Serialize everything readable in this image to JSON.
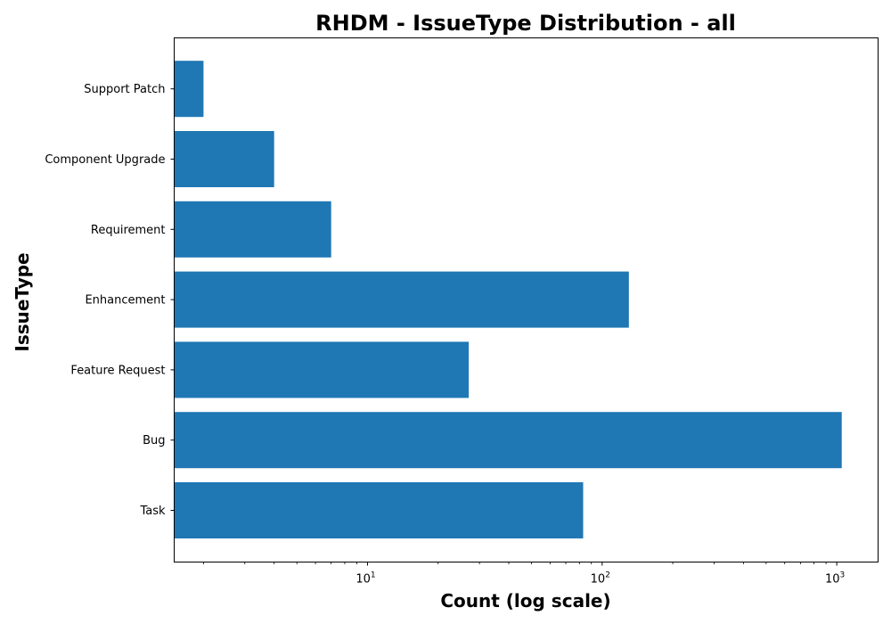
{
  "chart_data": {
    "type": "bar",
    "orientation": "horizontal",
    "title": "RHDM - IssueType Distribution - all",
    "xlabel": "Count (log scale)",
    "ylabel": "IssueType",
    "xscale": "log",
    "xlim": [
      1.5,
      1500
    ],
    "categories": [
      "Task",
      "Bug",
      "Feature Request",
      "Enhancement",
      "Requirement",
      "Component Upgrade",
      "Support Patch"
    ],
    "values": [
      83,
      1050,
      27,
      130,
      7,
      4,
      2
    ],
    "xticks": [
      {
        "value": 10,
        "base": "10",
        "exp": "1"
      },
      {
        "value": 100,
        "base": "10",
        "exp": "2"
      },
      {
        "value": 1000,
        "base": "10",
        "exp": "3"
      }
    ],
    "bar_color": "#1f77b4",
    "grid": false,
    "legend": "none"
  }
}
